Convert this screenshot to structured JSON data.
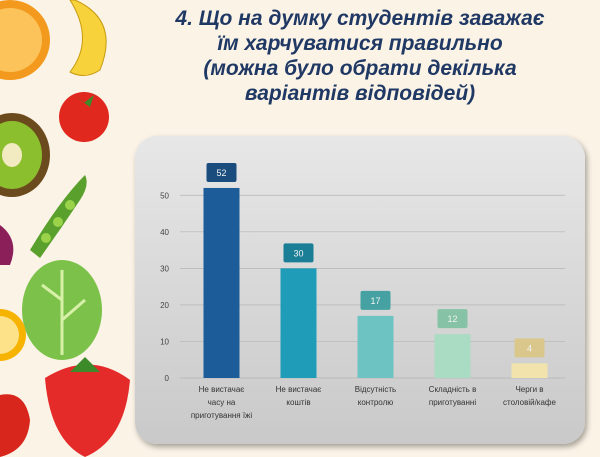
{
  "chart_data": {
    "type": "bar",
    "title": [
      "4. Що на думку студентів заважає",
      "їм харчуватися правильно",
      "(можна було обрати декілька",
      "варіантів відповідей)"
    ],
    "categories": [
      "Не вистачає\nчасу на\nприготування їжі",
      "Не вистачає\nкоштів",
      "Відсутність\nконтролю",
      "Складність в\nприготуванні",
      "Черги в\nстоловій/кафе"
    ],
    "values": [
      52,
      30,
      17,
      12,
      4
    ],
    "colors": [
      "#1b5c99",
      "#1e9cb8",
      "#6cc3c1",
      "#a9dcc2",
      "#f1e3ab"
    ],
    "label_colors": [
      "#1a4c7e",
      "#1a7f96",
      "#46a2a2",
      "#86c3a6",
      "#d9c78c"
    ],
    "ylim": [
      0,
      55
    ],
    "yticks": [
      0,
      10,
      20,
      30,
      40,
      50
    ],
    "grid": true
  }
}
